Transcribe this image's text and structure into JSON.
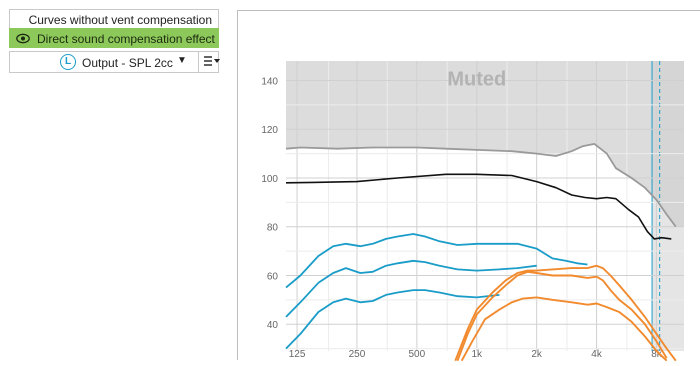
{
  "panel": {
    "curves_label": "Curves without vent compensation",
    "direct_label": "Direct sound compensation effect",
    "output_badge": "L",
    "output_label": "Output - SPL 2cc",
    "output_caret": "▼",
    "menu_icon": "menu-lines-icon",
    "eye_icon": "eye-icon"
  },
  "colors": {
    "active_green": "#8cc95a",
    "blue": "#1a9cc8",
    "orange": "#f28a2e",
    "muted_fill": "#dcdcdc",
    "black_curve": "#111111",
    "grey_curve": "#9a9a9a"
  },
  "chart_data": {
    "type": "line",
    "muted_label": "Muted",
    "x_ticks": [
      "125",
      "250",
      "500",
      "1k",
      "2k",
      "4k",
      "8k"
    ],
    "y_ticks": [
      "140",
      "120",
      "100",
      "80",
      "60",
      "40"
    ],
    "x_range": [
      110,
      11000
    ],
    "y_range": [
      29,
      148
    ],
    "x_scale": "log",
    "grid": true,
    "series": [
      {
        "role": "upper_gray",
        "color": "#9a9a9a",
        "x": [
          110,
          130,
          200,
          300,
          500,
          700,
          1000,
          1500,
          2000,
          2500,
          3000,
          3400,
          3900,
          4500,
          5000,
          6000,
          7000,
          8000,
          9000,
          10000
        ],
        "y": [
          112,
          112.5,
          112,
          112.5,
          112.5,
          112,
          111.5,
          111,
          110,
          109,
          111,
          113,
          114,
          110,
          104,
          100,
          96,
          91,
          85,
          80
        ]
      },
      {
        "role": "black",
        "color": "#111111",
        "x": [
          110,
          150,
          250,
          400,
          700,
          1000,
          1500,
          2000,
          2500,
          3000,
          3500,
          4000,
          4500,
          5000,
          5800,
          6500,
          7200,
          7800,
          8500,
          9500
        ],
        "y": [
          98,
          98.2,
          98.5,
          100,
          101.5,
          101.5,
          101,
          98.5,
          96,
          93,
          92,
          91.5,
          92,
          91.5,
          87,
          84,
          78,
          75,
          75.5,
          75
        ]
      },
      {
        "role": "blue_high",
        "color": "#1a9cc8",
        "x": [
          110,
          130,
          160,
          190,
          220,
          260,
          300,
          350,
          400,
          480,
          550,
          650,
          800,
          1000,
          1300,
          1600,
          2000,
          2400,
          2800,
          3200,
          3600
        ],
        "y": [
          55,
          60,
          68,
          72,
          73,
          72,
          73,
          75,
          76,
          77,
          76,
          74,
          72.5,
          73,
          73,
          73,
          71,
          67,
          66,
          65,
          64.5
        ]
      },
      {
        "role": "blue_mid",
        "color": "#1a9cc8",
        "x": [
          110,
          130,
          160,
          190,
          220,
          260,
          300,
          350,
          400,
          480,
          550,
          650,
          800,
          1000,
          1300,
          1600,
          2000
        ],
        "y": [
          43,
          49,
          57,
          61,
          63,
          61,
          61.5,
          64,
          65,
          66,
          65.5,
          64,
          62.5,
          62,
          62.5,
          63,
          64
        ]
      },
      {
        "role": "blue_low",
        "color": "#1a9cc8",
        "x": [
          110,
          130,
          160,
          190,
          220,
          260,
          300,
          350,
          400,
          480,
          550,
          650,
          800,
          1000,
          1300
        ],
        "y": [
          30,
          36,
          45,
          49,
          50.5,
          49,
          49.5,
          52,
          53,
          54,
          54,
          53,
          51.5,
          51,
          52
        ]
      },
      {
        "role": "orange_1",
        "color": "#f28a2e",
        "x": [
          780,
          900,
          1000,
          1200,
          1400,
          1600,
          1800,
          2000,
          2400,
          3000,
          3600,
          4000,
          4300,
          4700,
          5200,
          6000,
          7000,
          8000,
          9000,
          10000
        ],
        "y": [
          25,
          38,
          46,
          53,
          58,
          61,
          62,
          62,
          62.5,
          63,
          63,
          64,
          63,
          60,
          56,
          50,
          43,
          36,
          30,
          25
        ]
      },
      {
        "role": "orange_2",
        "color": "#f28a2e",
        "x": [
          800,
          900,
          1000,
          1200,
          1400,
          1600,
          1800,
          2000,
          2400,
          3000,
          3600,
          4000,
          4300,
          4700,
          5200,
          6000,
          7000,
          8000,
          9000
        ],
        "y": [
          25,
          36,
          44,
          51,
          56,
          60,
          61.5,
          61,
          60,
          60,
          59,
          59.5,
          58,
          54,
          50,
          46,
          40,
          33,
          26
        ]
      },
      {
        "role": "orange_3",
        "color": "#f28a2e",
        "x": [
          840,
          950,
          1100,
          1300,
          1500,
          1700,
          2000,
          2400,
          3000,
          3600,
          4000,
          4500,
          5200,
          6000,
          7000,
          8000,
          9000
        ],
        "y": [
          25,
          33,
          42,
          46,
          49,
          50.5,
          51,
          50,
          49,
          48,
          48.5,
          47,
          45,
          41,
          35,
          29,
          25
        ]
      }
    ]
  }
}
